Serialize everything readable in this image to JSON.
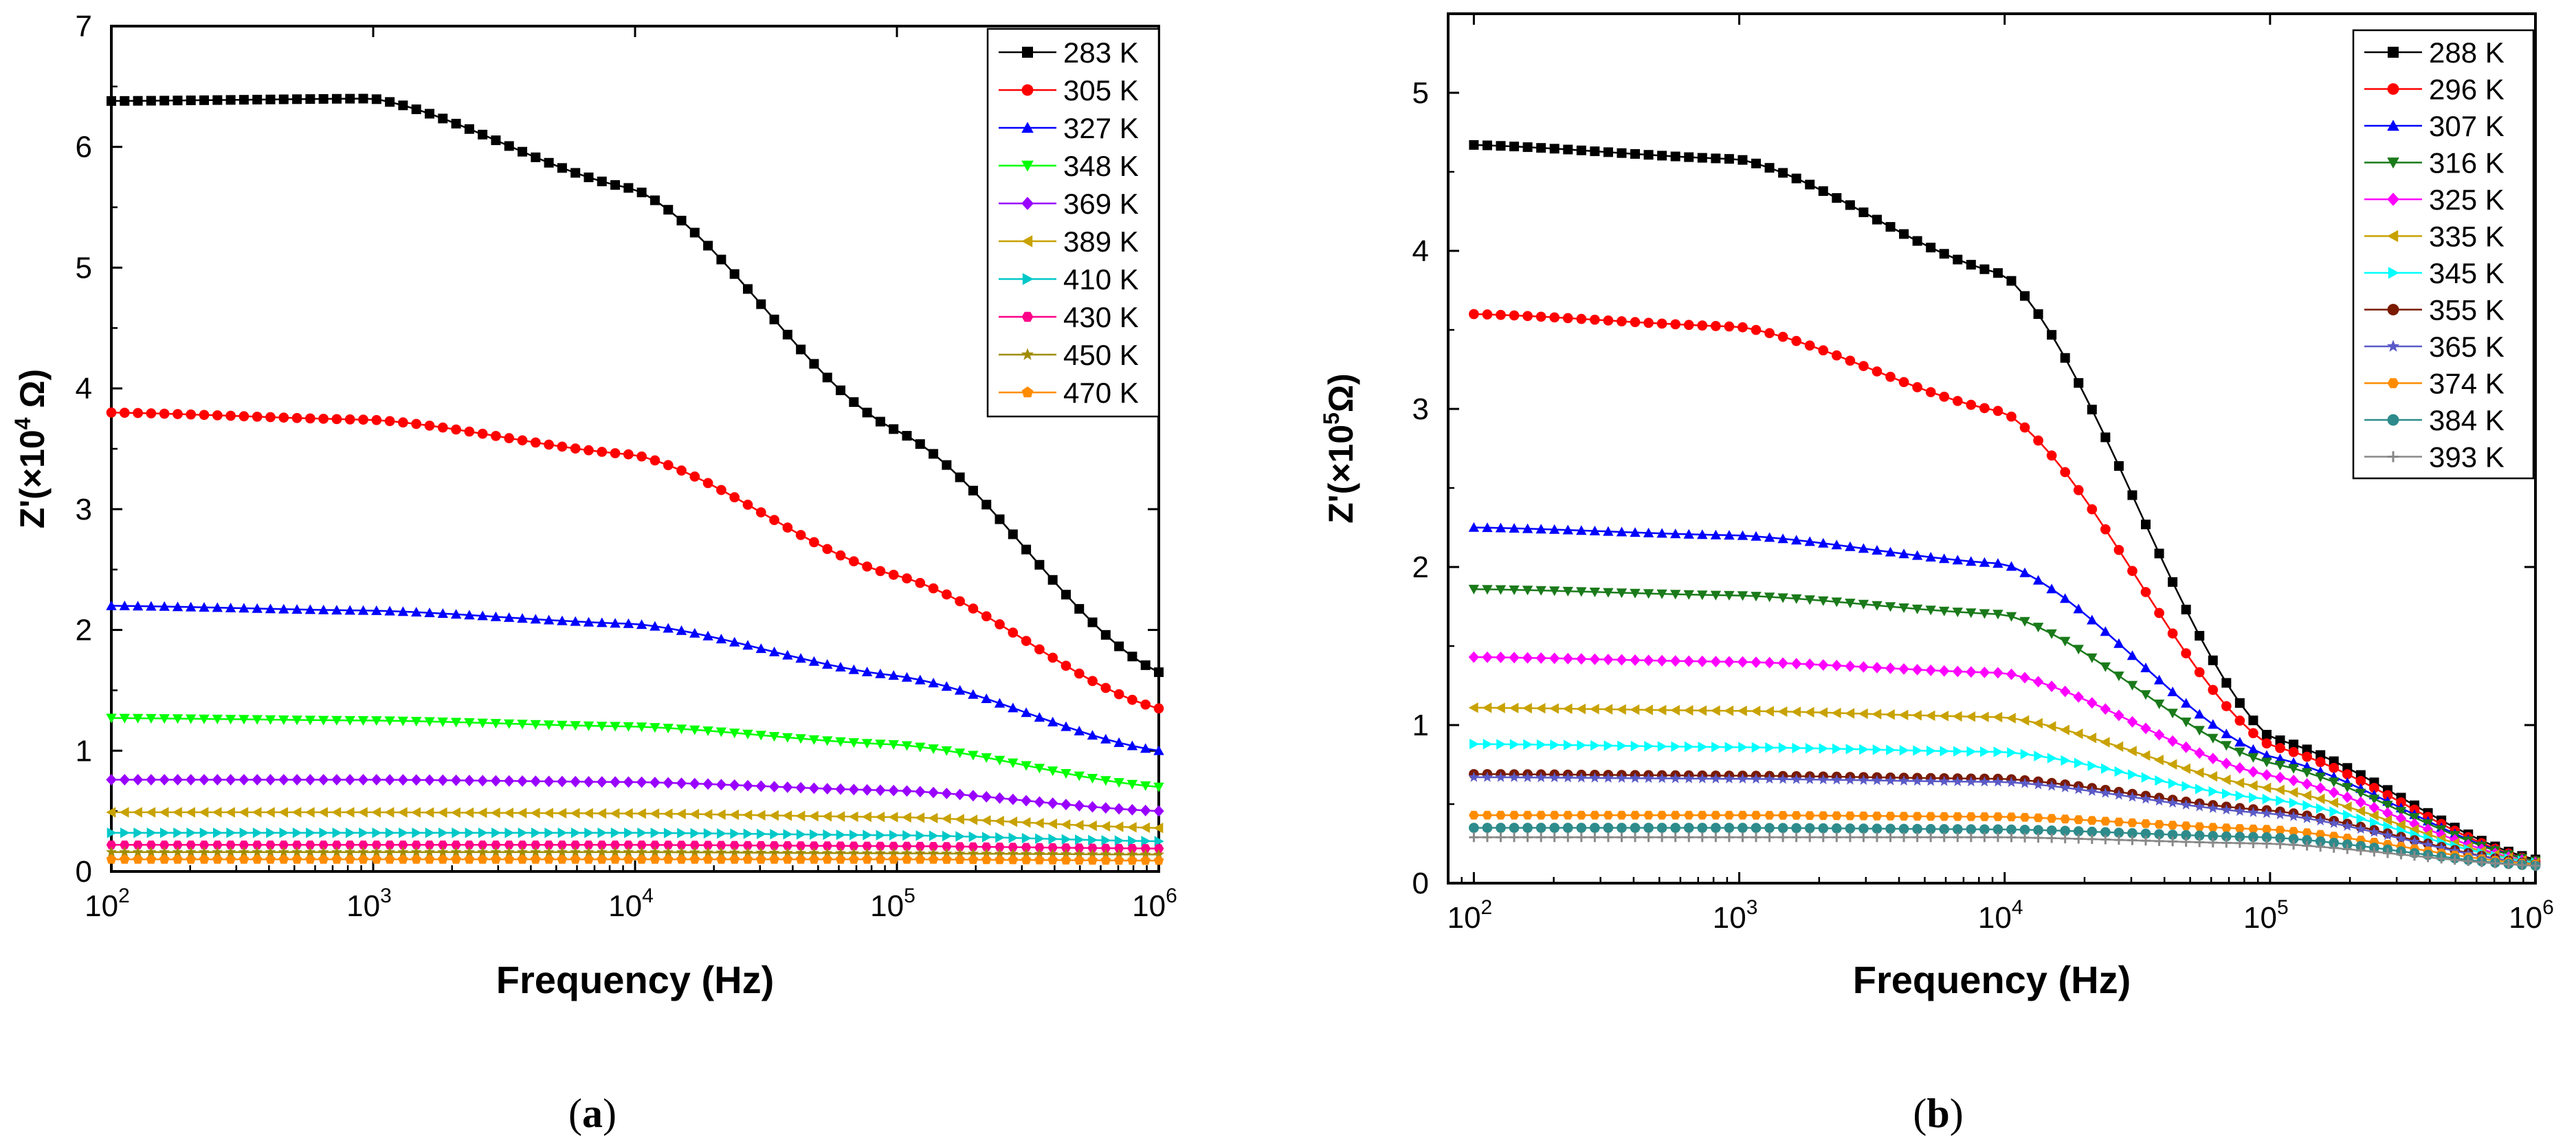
{
  "chart_data": [
    {
      "type": "line",
      "panel_label": "a",
      "title": "",
      "xlabel": "Frequency (Hz)",
      "ylabel": "Z'(×10",
      "ylabel_exp": "4",
      "ylabel_unit": " Ω)",
      "x_scale": "log",
      "xlim": [
        100,
        1000000
      ],
      "ylim": [
        0,
        7
      ],
      "x_ticks": [
        {
          "value": 100,
          "base": "10",
          "exp": "2"
        },
        {
          "value": 1000,
          "base": "10",
          "exp": "3"
        },
        {
          "value": 10000,
          "base": "10",
          "exp": "4"
        },
        {
          "value": 100000,
          "base": "10",
          "exp": "5"
        },
        {
          "value": 1000000,
          "base": "10",
          "exp": "6"
        }
      ],
      "y_ticks": [
        0,
        1,
        2,
        3,
        4,
        5,
        6,
        7
      ],
      "y_tick_labels": [
        "0",
        "1",
        "2",
        "3",
        "4",
        "5",
        "6",
        "7"
      ],
      "grid": false,
      "legend_position": "top-right",
      "x": [
        100,
        1000,
        10000,
        100000,
        1000000
      ],
      "series": [
        {
          "name": "283 K",
          "color": "#000000",
          "marker": "square",
          "values": [
            6.38,
            6.4,
            5.65,
            3.65,
            1.65
          ]
        },
        {
          "name": "305 K",
          "color": "#ff0000",
          "marker": "circle",
          "values": [
            3.8,
            3.74,
            3.45,
            2.45,
            1.35
          ]
        },
        {
          "name": "327 K",
          "color": "#0000ff",
          "marker": "triangle-up",
          "values": [
            2.2,
            2.16,
            2.05,
            1.62,
            1.0
          ]
        },
        {
          "name": "348 K",
          "color": "#00ff00",
          "marker": "triangle-down",
          "values": [
            1.27,
            1.25,
            1.2,
            1.05,
            0.7
          ]
        },
        {
          "name": "369 K",
          "color": "#9900ff",
          "marker": "diamond",
          "values": [
            0.76,
            0.76,
            0.74,
            0.67,
            0.5
          ]
        },
        {
          "name": "389 K",
          "color": "#c8a200",
          "marker": "triangle-left",
          "values": [
            0.49,
            0.49,
            0.48,
            0.45,
            0.36
          ]
        },
        {
          "name": "410 K",
          "color": "#00c8c8",
          "marker": "triangle-right",
          "values": [
            0.32,
            0.32,
            0.32,
            0.3,
            0.25
          ]
        },
        {
          "name": "430 K",
          "color": "#ff0088",
          "marker": "hexagon",
          "values": [
            0.22,
            0.22,
            0.22,
            0.21,
            0.19
          ]
        },
        {
          "name": "450 K",
          "color": "#a08c00",
          "marker": "star",
          "values": [
            0.16,
            0.16,
            0.16,
            0.15,
            0.14
          ]
        },
        {
          "name": "470 K",
          "color": "#ff8c00",
          "marker": "pentagon",
          "values": [
            0.1,
            0.1,
            0.1,
            0.1,
            0.09
          ]
        }
      ]
    },
    {
      "type": "line",
      "panel_label": "b",
      "title": "",
      "xlabel": "Frequency (Hz)",
      "ylabel": "Z'(×10",
      "ylabel_exp": "5",
      "ylabel_unit": "Ω)",
      "x_scale": "log",
      "xlim": [
        80,
        1000000
      ],
      "ylim": [
        0,
        5.5
      ],
      "x_ticks": [
        {
          "value": 100,
          "base": "10",
          "exp": "2"
        },
        {
          "value": 1000,
          "base": "10",
          "exp": "3"
        },
        {
          "value": 10000,
          "base": "10",
          "exp": "4"
        },
        {
          "value": 100000,
          "base": "10",
          "exp": "5"
        },
        {
          "value": 1000000,
          "base": "10",
          "exp": "6"
        }
      ],
      "y_ticks": [
        0,
        1,
        2,
        3,
        4,
        5
      ],
      "y_tick_labels": [
        "0",
        "1",
        "2",
        "3",
        "4",
        "5"
      ],
      "grid": false,
      "legend_position": "top-right",
      "x": [
        100,
        1000,
        10000,
        100000,
        1000000
      ],
      "series": [
        {
          "name": "288 K",
          "color": "#000000",
          "marker": "square",
          "values": [
            4.67,
            4.58,
            3.85,
            0.92,
            0.15
          ]
        },
        {
          "name": "296 K",
          "color": "#ff0000",
          "marker": "circle",
          "values": [
            3.6,
            3.52,
            2.98,
            0.87,
            0.14
          ]
        },
        {
          "name": "307 K",
          "color": "#0000ff",
          "marker": "triangle-up",
          "values": [
            2.25,
            2.2,
            2.02,
            0.8,
            0.14
          ]
        },
        {
          "name": "316 K",
          "color": "#1a7a1a",
          "marker": "triangle-down",
          "values": [
            1.86,
            1.82,
            1.7,
            0.76,
            0.14
          ]
        },
        {
          "name": "325 K",
          "color": "#ff00ff",
          "marker": "diamond",
          "values": [
            1.43,
            1.4,
            1.33,
            0.68,
            0.13
          ]
        },
        {
          "name": "335 K",
          "color": "#c8a200",
          "marker": "triangle-left",
          "values": [
            1.11,
            1.09,
            1.05,
            0.6,
            0.13
          ]
        },
        {
          "name": "345 K",
          "color": "#00ffff",
          "marker": "triangle-right",
          "values": [
            0.88,
            0.86,
            0.83,
            0.53,
            0.13
          ]
        },
        {
          "name": "355 K",
          "color": "#7a1a00",
          "marker": "circle",
          "values": [
            0.69,
            0.68,
            0.66,
            0.46,
            0.12
          ]
        },
        {
          "name": "365 K",
          "color": "#5a5ac8",
          "marker": "star",
          "values": [
            0.67,
            0.66,
            0.64,
            0.44,
            0.12
          ]
        },
        {
          "name": "374 K",
          "color": "#ff8c00",
          "marker": "hexagon",
          "values": [
            0.43,
            0.43,
            0.42,
            0.34,
            0.12
          ]
        },
        {
          "name": "384 K",
          "color": "#2e8b8b",
          "marker": "circle",
          "values": [
            0.35,
            0.35,
            0.34,
            0.29,
            0.11
          ]
        },
        {
          "name": "393 K",
          "color": "#888888",
          "marker": "cross",
          "values": [
            0.29,
            0.29,
            0.29,
            0.25,
            0.11
          ]
        }
      ]
    }
  ]
}
